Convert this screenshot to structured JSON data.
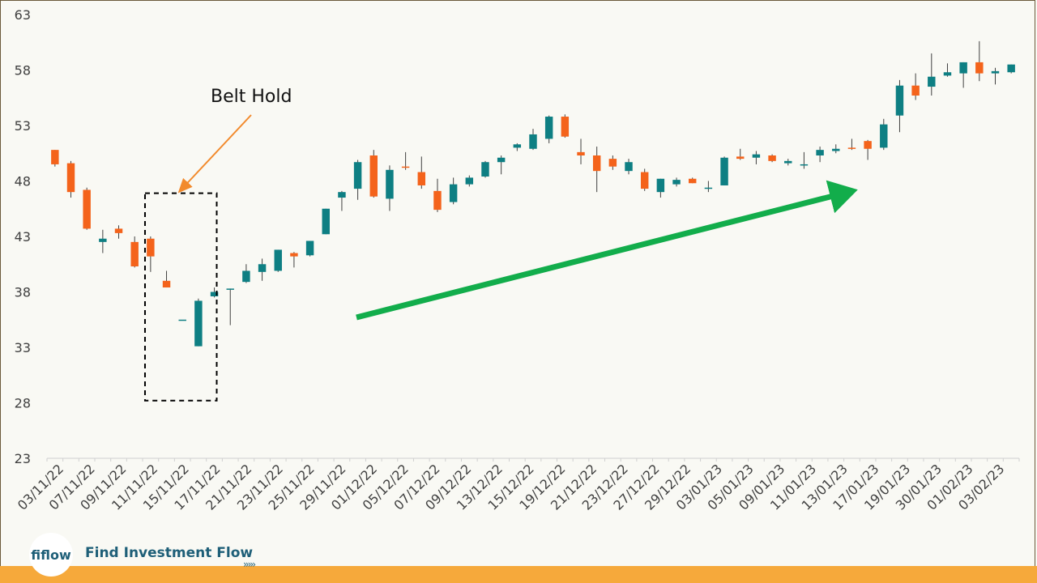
{
  "chart_data": {
    "type": "candlestick",
    "ylim": [
      23,
      63
    ],
    "yticks": [
      63,
      58,
      53,
      48,
      43,
      38,
      33,
      28,
      23
    ],
    "x_labels": [
      "03/11/22",
      "07/11/22",
      "09/11/22",
      "11/11/22",
      "15/11/22",
      "17/11/22",
      "21/11/22",
      "23/11/22",
      "25/11/22",
      "29/11/22",
      "01/12/22",
      "05/12/22",
      "07/12/22",
      "09/12/22",
      "13/12/22",
      "15/12/22",
      "19/12/22",
      "21/12/22",
      "23/12/22",
      "27/12/22",
      "29/12/22",
      "03/01/23",
      "05/01/23",
      "09/01/23",
      "11/01/23",
      "13/01/23",
      "17/01/23",
      "19/01/23",
      "30/01/23",
      "01/02/23",
      "03/02/23"
    ],
    "colors": {
      "up": "#0e7f83",
      "down": "#f4631b"
    },
    "candles": [
      {
        "o": 50.8,
        "h": 50.8,
        "l": 49.3,
        "c": 49.5
      },
      {
        "o": 49.6,
        "h": 49.8,
        "l": 46.5,
        "c": 47.0
      },
      {
        "o": 47.2,
        "h": 47.4,
        "l": 43.6,
        "c": 43.7
      },
      {
        "o": 42.5,
        "h": 43.6,
        "l": 41.5,
        "c": 42.8
      },
      {
        "o": 43.7,
        "h": 44.0,
        "l": 42.8,
        "c": 43.3
      },
      {
        "o": 42.5,
        "h": 43.0,
        "l": 40.2,
        "c": 40.3
      },
      {
        "o": 42.8,
        "h": 43.0,
        "l": 39.8,
        "c": 41.2
      },
      {
        "o": 39.0,
        "h": 39.9,
        "l": 38.4,
        "c": 38.4
      },
      {
        "o": 35.5,
        "h": 35.5,
        "l": 35.5,
        "c": 35.5
      },
      {
        "o": 33.1,
        "h": 37.4,
        "l": 33.1,
        "c": 37.2
      },
      {
        "o": 37.6,
        "h": 38.4,
        "l": 37.5,
        "c": 38.0
      },
      {
        "o": 38.2,
        "h": 38.3,
        "l": 35.0,
        "c": 38.3
      },
      {
        "o": 38.9,
        "h": 40.5,
        "l": 38.8,
        "c": 39.9
      },
      {
        "o": 39.8,
        "h": 41.0,
        "l": 39.0,
        "c": 40.5
      },
      {
        "o": 39.9,
        "h": 41.8,
        "l": 39.8,
        "c": 41.8
      },
      {
        "o": 41.5,
        "h": 41.6,
        "l": 40.2,
        "c": 41.2
      },
      {
        "o": 41.3,
        "h": 42.6,
        "l": 41.2,
        "c": 42.6
      },
      {
        "o": 43.2,
        "h": 45.5,
        "l": 43.2,
        "c": 45.5
      },
      {
        "o": 46.5,
        "h": 47.1,
        "l": 45.3,
        "c": 47.0
      },
      {
        "o": 47.3,
        "h": 49.9,
        "l": 46.3,
        "c": 49.7
      },
      {
        "o": 50.3,
        "h": 50.8,
        "l": 46.5,
        "c": 46.6
      },
      {
        "o": 46.4,
        "h": 49.4,
        "l": 45.3,
        "c": 49.0
      },
      {
        "o": 49.3,
        "h": 50.6,
        "l": 49.0,
        "c": 49.2
      },
      {
        "o": 48.8,
        "h": 50.2,
        "l": 47.3,
        "c": 47.6
      },
      {
        "o": 47.1,
        "h": 48.2,
        "l": 45.2,
        "c": 45.4
      },
      {
        "o": 46.1,
        "h": 48.3,
        "l": 45.9,
        "c": 47.7
      },
      {
        "o": 47.7,
        "h": 48.5,
        "l": 47.5,
        "c": 48.3
      },
      {
        "o": 48.4,
        "h": 49.8,
        "l": 48.3,
        "c": 49.7
      },
      {
        "o": 49.7,
        "h": 50.3,
        "l": 48.6,
        "c": 50.1
      },
      {
        "o": 51.0,
        "h": 51.4,
        "l": 50.7,
        "c": 51.3
      },
      {
        "o": 50.9,
        "h": 52.7,
        "l": 50.8,
        "c": 52.2
      },
      {
        "o": 51.8,
        "h": 53.9,
        "l": 51.4,
        "c": 53.8
      },
      {
        "o": 53.8,
        "h": 54.0,
        "l": 51.9,
        "c": 52.0
      },
      {
        "o": 50.6,
        "h": 51.8,
        "l": 49.5,
        "c": 50.3
      },
      {
        "o": 50.3,
        "h": 51.1,
        "l": 47.0,
        "c": 48.9
      },
      {
        "o": 50.0,
        "h": 50.3,
        "l": 49.0,
        "c": 49.3
      },
      {
        "o": 48.9,
        "h": 50.0,
        "l": 48.6,
        "c": 49.7
      },
      {
        "o": 48.8,
        "h": 49.1,
        "l": 47.1,
        "c": 47.3
      },
      {
        "o": 47.0,
        "h": 48.2,
        "l": 46.5,
        "c": 48.2
      },
      {
        "o": 47.7,
        "h": 48.3,
        "l": 47.5,
        "c": 48.1
      },
      {
        "o": 48.2,
        "h": 48.3,
        "l": 47.8,
        "c": 47.8
      },
      {
        "o": 47.4,
        "h": 48.0,
        "l": 47.0,
        "c": 47.4
      },
      {
        "o": 47.6,
        "h": 50.2,
        "l": 47.6,
        "c": 50.1
      },
      {
        "o": 50.2,
        "h": 50.9,
        "l": 49.9,
        "c": 50.0
      },
      {
        "o": 50.1,
        "h": 50.7,
        "l": 49.5,
        "c": 50.4
      },
      {
        "o": 50.3,
        "h": 50.4,
        "l": 49.7,
        "c": 49.8
      },
      {
        "o": 49.6,
        "h": 50.0,
        "l": 49.4,
        "c": 49.8
      },
      {
        "o": 49.4,
        "h": 50.6,
        "l": 49.1,
        "c": 49.5
      },
      {
        "o": 50.3,
        "h": 51.1,
        "l": 49.7,
        "c": 50.8
      },
      {
        "o": 50.7,
        "h": 51.3,
        "l": 50.5,
        "c": 50.9
      },
      {
        "o": 51.0,
        "h": 51.8,
        "l": 50.8,
        "c": 50.9
      },
      {
        "o": 51.6,
        "h": 51.7,
        "l": 49.9,
        "c": 50.9
      },
      {
        "o": 51.0,
        "h": 53.6,
        "l": 50.8,
        "c": 53.1
      },
      {
        "o": 53.9,
        "h": 57.1,
        "l": 52.4,
        "c": 56.6
      },
      {
        "o": 56.6,
        "h": 57.7,
        "l": 55.3,
        "c": 55.7
      },
      {
        "o": 56.5,
        "h": 59.5,
        "l": 55.7,
        "c": 57.4
      },
      {
        "o": 57.5,
        "h": 58.6,
        "l": 57.4,
        "c": 57.8
      },
      {
        "o": 57.7,
        "h": 58.7,
        "l": 56.4,
        "c": 58.7
      },
      {
        "o": 58.7,
        "h": 60.6,
        "l": 57.0,
        "c": 57.7
      },
      {
        "o": 57.7,
        "h": 58.2,
        "l": 56.7,
        "c": 57.9
      },
      {
        "o": 57.8,
        "h": 58.5,
        "l": 57.7,
        "c": 58.5
      }
    ],
    "annotations": [
      {
        "text": "Belt Hold"
      }
    ]
  },
  "footer": {
    "logo_text": "fiflow",
    "brand_name": "Find Investment Flow",
    "chevrons": "›››››"
  }
}
